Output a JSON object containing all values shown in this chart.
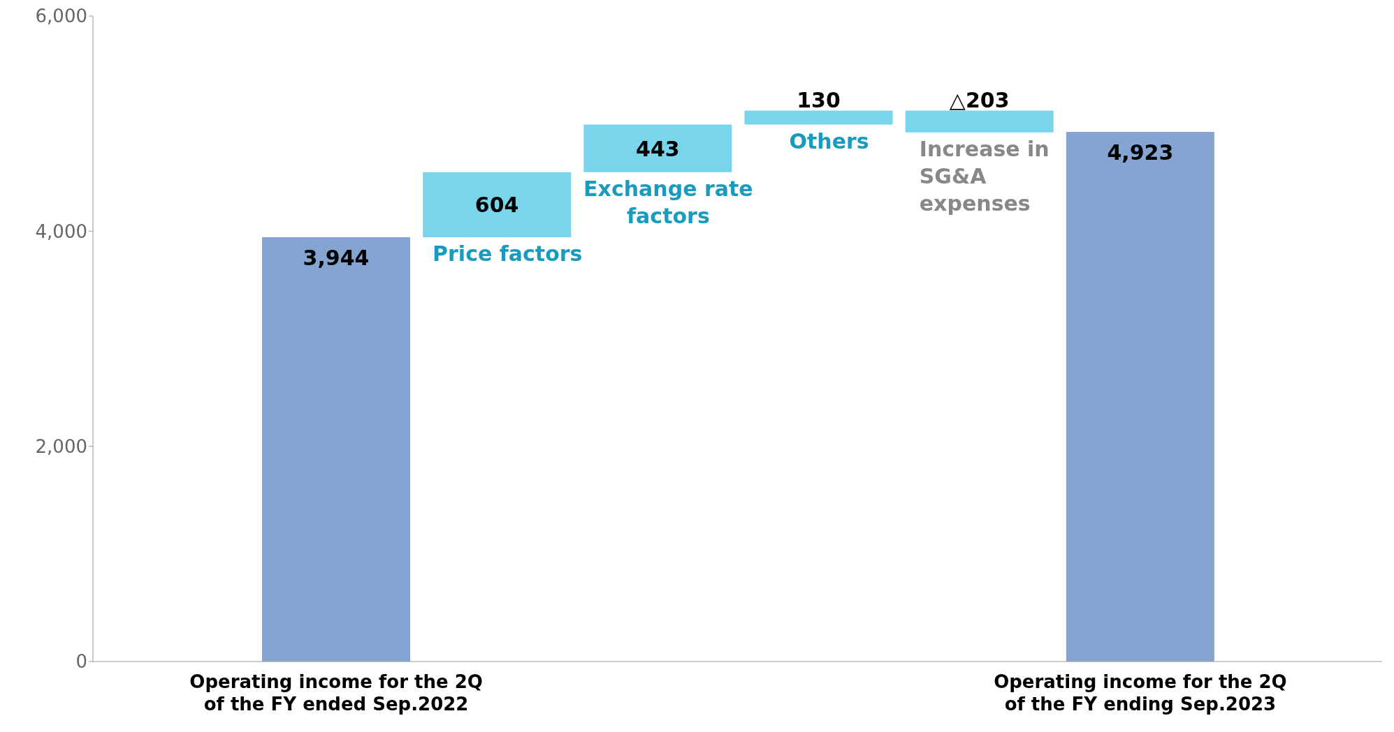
{
  "chart_data": {
    "type": "bar",
    "categories": [
      "Operating income for the 2Q of the FY ended Sep.2022",
      null,
      null,
      null,
      null,
      "Operating income for the 2Q of the FY ending Sep.2023"
    ],
    "values": [
      3944,
      604,
      443,
      130,
      -203,
      4923
    ],
    "base": [
      0,
      3944,
      4548,
      4991,
      5121,
      0
    ],
    "colors": [
      "#84a4d2",
      "#79d5ec",
      "#79d5ec",
      "#79d5ec",
      "#79d5ec",
      "#84a4d2"
    ],
    "value_labels": [
      "3,944",
      "604",
      "443",
      "130",
      "△203",
      "4,923"
    ],
    "annotations": [
      "Price factors",
      "Exchange rate factors",
      "Others",
      "Increase in SG&A expenses"
    ],
    "ylim": [
      0,
      6000
    ],
    "yticks": [
      {
        "value": 0,
        "label": "0"
      },
      {
        "value": 2000,
        "label": "2,000"
      },
      {
        "value": 4000,
        "label": "4,000"
      },
      {
        "value": 6000,
        "label": "6,000"
      }
    ],
    "grid": false,
    "legend": false
  }
}
